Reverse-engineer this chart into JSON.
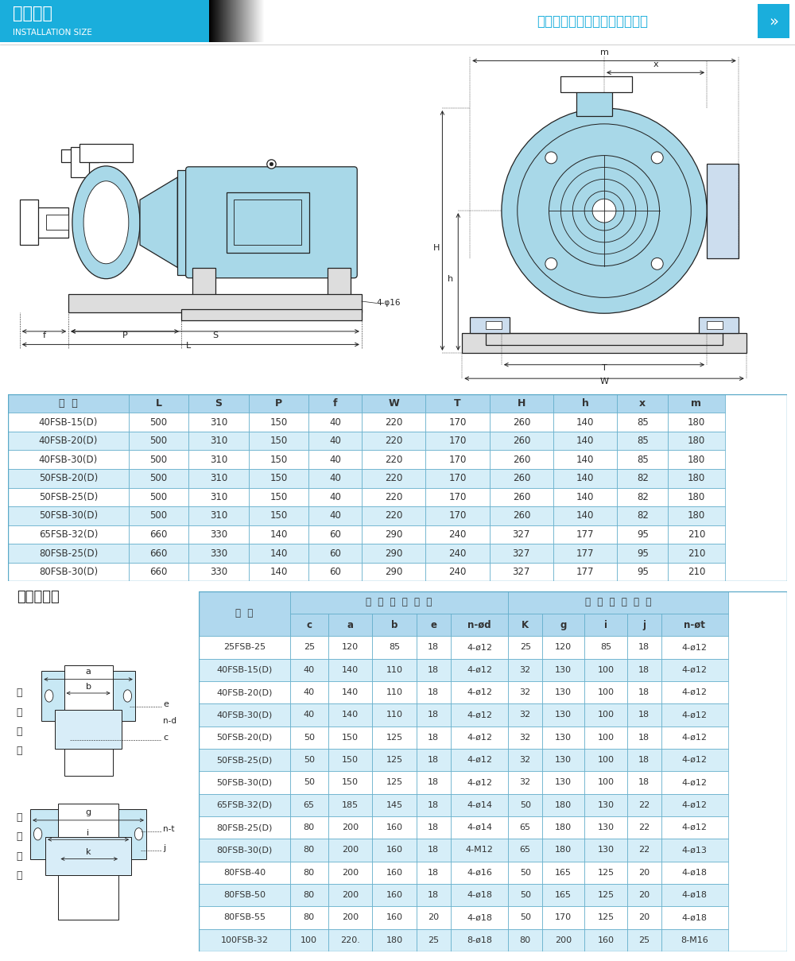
{
  "title_cn": "安装尺寸",
  "title_en": "INSTALLATION SIZE",
  "company": "安徽皖达流体设备制造有限公司",
  "header_bg": "#1AAEDC",
  "table1_header": [
    "型  号",
    "L",
    "S",
    "P",
    "f",
    "W",
    "T",
    "H",
    "h",
    "x",
    "m"
  ],
  "table1_data": [
    [
      "40FSB-15(D)",
      "500",
      "310",
      "150",
      "40",
      "220",
      "170",
      "260",
      "140",
      "85",
      "180"
    ],
    [
      "40FSB-20(D)",
      "500",
      "310",
      "150",
      "40",
      "220",
      "170",
      "260",
      "140",
      "85",
      "180"
    ],
    [
      "40FSB-30(D)",
      "500",
      "310",
      "150",
      "40",
      "220",
      "170",
      "260",
      "140",
      "85",
      "180"
    ],
    [
      "50FSB-20(D)",
      "500",
      "310",
      "150",
      "40",
      "220",
      "170",
      "260",
      "140",
      "82",
      "180"
    ],
    [
      "50FSB-25(D)",
      "500",
      "310",
      "150",
      "40",
      "220",
      "170",
      "260",
      "140",
      "82",
      "180"
    ],
    [
      "50FSB-30(D)",
      "500",
      "310",
      "150",
      "40",
      "220",
      "170",
      "260",
      "140",
      "82",
      "180"
    ],
    [
      "65FSB-32(D)",
      "660",
      "330",
      "140",
      "60",
      "290",
      "240",
      "327",
      "177",
      "95",
      "210"
    ],
    [
      "80FSB-25(D)",
      "660",
      "330",
      "140",
      "60",
      "290",
      "240",
      "327",
      "177",
      "95",
      "210"
    ],
    [
      "80FSB-30(D)",
      "660",
      "330",
      "140",
      "60",
      "290",
      "240",
      "327",
      "177",
      "95",
      "210"
    ]
  ],
  "flange_title": "法兰尺寸图",
  "table2_data": [
    [
      "25FSB-25",
      "25",
      "120",
      "85",
      "18",
      "4-ø12",
      "25",
      "120",
      "85",
      "18",
      "4-ø12"
    ],
    [
      "40FSB-15(D)",
      "40",
      "140",
      "110",
      "18",
      "4-ø12",
      "32",
      "130",
      "100",
      "18",
      "4-ø12"
    ],
    [
      "40FSB-20(D)",
      "40",
      "140",
      "110",
      "18",
      "4-ø12",
      "32",
      "130",
      "100",
      "18",
      "4-ø12"
    ],
    [
      "40FSB-30(D)",
      "40",
      "140",
      "110",
      "18",
      "4-ø12",
      "32",
      "130",
      "100",
      "18",
      "4-ø12"
    ],
    [
      "50FSB-20(D)",
      "50",
      "150",
      "125",
      "18",
      "4-ø12",
      "32",
      "130",
      "100",
      "18",
      "4-ø12"
    ],
    [
      "50FSB-25(D)",
      "50",
      "150",
      "125",
      "18",
      "4-ø12",
      "32",
      "130",
      "100",
      "18",
      "4-ø12"
    ],
    [
      "50FSB-30(D)",
      "50",
      "150",
      "125",
      "18",
      "4-ø12",
      "32",
      "130",
      "100",
      "18",
      "4-ø12"
    ],
    [
      "65FSB-32(D)",
      "65",
      "185",
      "145",
      "18",
      "4-ø14",
      "50",
      "180",
      "130",
      "22",
      "4-ø12"
    ],
    [
      "80FSB-25(D)",
      "80",
      "200",
      "160",
      "18",
      "4-ø14",
      "65",
      "180",
      "130",
      "22",
      "4-ø12"
    ],
    [
      "80FSB-30(D)",
      "80",
      "200",
      "160",
      "18",
      "4-M12",
      "65",
      "180",
      "130",
      "22",
      "4-ø13"
    ],
    [
      "80FSB-40",
      "80",
      "200",
      "160",
      "18",
      "4-ø16",
      "50",
      "165",
      "125",
      "20",
      "4-ø18"
    ],
    [
      "80FSB-50",
      "80",
      "200",
      "160",
      "18",
      "4-ø18",
      "50",
      "165",
      "125",
      "20",
      "4-ø18"
    ],
    [
      "80FSB-55",
      "80",
      "200",
      "160",
      "20",
      "4-ø18",
      "50",
      "170",
      "125",
      "20",
      "4-ø18"
    ],
    [
      "100FSB-32",
      "100",
      "220.",
      "180",
      "25",
      "8-ø18",
      "80",
      "200",
      "160",
      "25",
      "8-M16"
    ]
  ],
  "row_color_light": "#D6EEF8",
  "row_color_white": "#FFFFFF",
  "header_color": "#B0D8EE",
  "border_color": "#5BAAC8",
  "text_color": "#333333",
  "blue_color": "#1AAEDC"
}
